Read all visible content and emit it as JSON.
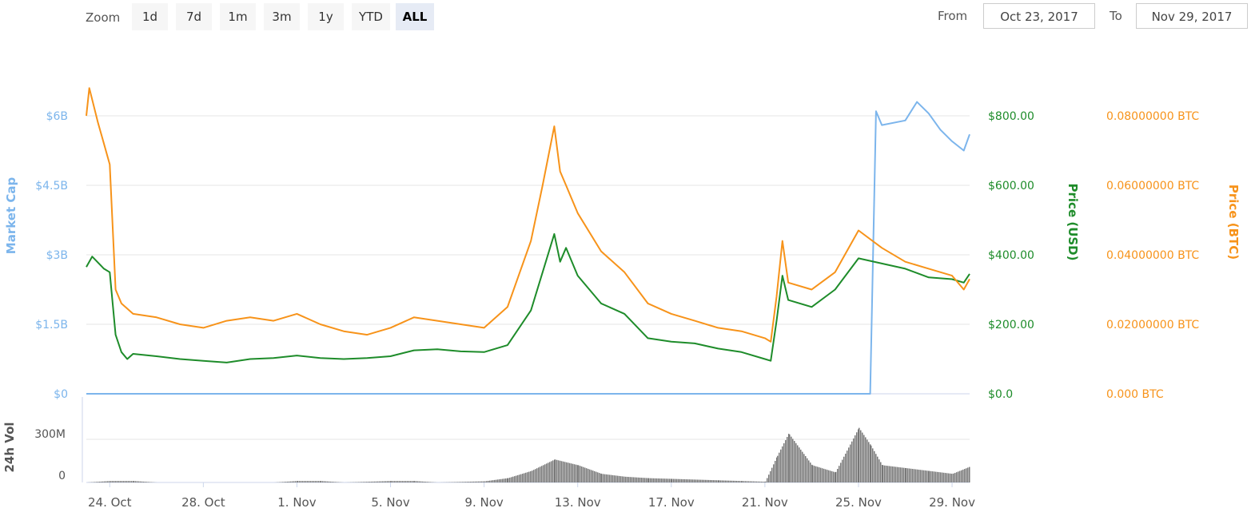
{
  "toolbar": {
    "zoom_label": "Zoom",
    "zoom_buttons": [
      "1d",
      "7d",
      "1m",
      "3m",
      "1y",
      "YTD",
      "ALL"
    ],
    "active_zoom": "ALL",
    "from_label": "From",
    "from_value": "Oct 23, 2017",
    "to_label": "To",
    "to_value": "Nov 29, 2017"
  },
  "colors": {
    "market_cap": "#7cb5ec",
    "price_usd": "#1e8c2a",
    "price_btc": "#f7931a",
    "volume": "#777777",
    "grid": "#e6e6e6"
  },
  "chart_data": {
    "type": "line",
    "x_axis": {
      "tick_labels": [
        "24. Oct",
        "28. Oct",
        "1. Nov",
        "5. Nov",
        "9. Nov",
        "13. Nov",
        "17. Nov",
        "21. Nov",
        "25. Nov",
        "29. Nov"
      ],
      "range": [
        "2017-10-23",
        "2017-11-29"
      ]
    },
    "axes": {
      "market_cap": {
        "label": "Market Cap",
        "ticks": [
          "$0",
          "$1.5B",
          "$3B",
          "$4.5B",
          "$6B"
        ],
        "range": [
          0,
          6000000000
        ]
      },
      "price_usd": {
        "label": "Price (USD)",
        "ticks": [
          "$0.0",
          "$200.00",
          "$400.00",
          "$600.00",
          "$800.00"
        ],
        "range": [
          0,
          800
        ]
      },
      "price_btc": {
        "label": "Price (BTC)",
        "ticks": [
          "0.000 BTC",
          "0.02000000 BTC",
          "0.04000000 BTC",
          "0.06000000 BTC",
          "0.08000000 BTC"
        ],
        "range": [
          0,
          0.08
        ]
      },
      "volume": {
        "label": "24h Vol",
        "ticks": [
          "0",
          "300M"
        ],
        "range": [
          0,
          300000000
        ]
      }
    },
    "series": [
      {
        "axis": "price_usd",
        "points": [
          [
            "2017-10-23",
            365
          ],
          [
            "2017-10-23T06:00",
            395
          ],
          [
            "2017-10-23T18:00",
            360
          ],
          [
            "2017-10-24",
            350
          ],
          [
            "2017-10-24T06:00",
            170
          ],
          [
            "2017-10-24T12:00",
            120
          ],
          [
            "2017-10-24T18:00",
            100
          ],
          [
            "2017-10-25",
            115
          ],
          [
            "2017-10-26",
            108
          ],
          [
            "2017-10-27",
            100
          ],
          [
            "2017-10-28",
            95
          ],
          [
            "2017-10-29",
            90
          ],
          [
            "2017-10-30",
            100
          ],
          [
            "2017-10-31",
            103
          ],
          [
            "2017-11-01",
            110
          ],
          [
            "2017-11-02",
            103
          ],
          [
            "2017-11-03",
            100
          ],
          [
            "2017-11-04",
            103
          ],
          [
            "2017-11-05",
            108
          ],
          [
            "2017-11-06",
            125
          ],
          [
            "2017-11-07",
            128
          ],
          [
            "2017-11-08",
            122
          ],
          [
            "2017-11-09",
            120
          ],
          [
            "2017-11-10",
            140
          ],
          [
            "2017-11-11",
            240
          ],
          [
            "2017-11-11T12:00",
            350
          ],
          [
            "2017-11-12",
            460
          ],
          [
            "2017-11-12T06:00",
            380
          ],
          [
            "2017-11-12T12:00",
            420
          ],
          [
            "2017-11-13",
            340
          ],
          [
            "2017-11-14",
            260
          ],
          [
            "2017-11-15",
            230
          ],
          [
            "2017-11-16",
            160
          ],
          [
            "2017-11-17",
            150
          ],
          [
            "2017-11-18",
            145
          ],
          [
            "2017-11-19",
            130
          ],
          [
            "2017-11-20",
            120
          ],
          [
            "2017-11-21",
            100
          ],
          [
            "2017-11-21T06:00",
            95
          ],
          [
            "2017-11-21T12:00",
            210
          ],
          [
            "2017-11-21T18:00",
            340
          ],
          [
            "2017-11-22",
            270
          ],
          [
            "2017-11-23",
            250
          ],
          [
            "2017-11-24",
            300
          ],
          [
            "2017-11-25",
            390
          ],
          [
            "2017-11-26",
            375
          ],
          [
            "2017-11-27",
            360
          ],
          [
            "2017-11-28",
            335
          ],
          [
            "2017-11-29",
            330
          ],
          [
            "2017-11-29T12:00",
            320
          ],
          [
            "2017-11-29T18:00",
            345
          ]
        ]
      },
      {
        "axis": "price_btc",
        "points": [
          [
            "2017-10-23",
            0.08
          ],
          [
            "2017-10-23T03:00",
            0.088
          ],
          [
            "2017-10-23T12:00",
            0.078
          ],
          [
            "2017-10-23T18:00",
            0.072
          ],
          [
            "2017-10-24",
            0.066
          ],
          [
            "2017-10-24T06:00",
            0.03
          ],
          [
            "2017-10-24T12:00",
            0.026
          ],
          [
            "2017-10-25",
            0.023
          ],
          [
            "2017-10-26",
            0.022
          ],
          [
            "2017-10-27",
            0.02
          ],
          [
            "2017-10-28",
            0.019
          ],
          [
            "2017-10-29",
            0.021
          ],
          [
            "2017-10-30",
            0.022
          ],
          [
            "2017-10-31",
            0.021
          ],
          [
            "2017-11-01",
            0.023
          ],
          [
            "2017-11-02",
            0.02
          ],
          [
            "2017-11-03",
            0.018
          ],
          [
            "2017-11-04",
            0.017
          ],
          [
            "2017-11-05",
            0.019
          ],
          [
            "2017-11-06",
            0.022
          ],
          [
            "2017-11-07",
            0.021
          ],
          [
            "2017-11-08",
            0.02
          ],
          [
            "2017-11-09",
            0.019
          ],
          [
            "2017-11-10",
            0.025
          ],
          [
            "2017-11-11",
            0.044
          ],
          [
            "2017-11-11T12:00",
            0.06
          ],
          [
            "2017-11-12",
            0.077
          ],
          [
            "2017-11-12T06:00",
            0.064
          ],
          [
            "2017-11-12T12:00",
            0.06
          ],
          [
            "2017-11-13",
            0.052
          ],
          [
            "2017-11-14",
            0.041
          ],
          [
            "2017-11-15",
            0.035
          ],
          [
            "2017-11-16",
            0.026
          ],
          [
            "2017-11-17",
            0.023
          ],
          [
            "2017-11-18",
            0.021
          ],
          [
            "2017-11-19",
            0.019
          ],
          [
            "2017-11-20",
            0.018
          ],
          [
            "2017-11-21",
            0.016
          ],
          [
            "2017-11-21T06:00",
            0.015
          ],
          [
            "2017-11-21T12:00",
            0.028
          ],
          [
            "2017-11-21T18:00",
            0.044
          ],
          [
            "2017-11-22",
            0.032
          ],
          [
            "2017-11-23",
            0.03
          ],
          [
            "2017-11-24",
            0.035
          ],
          [
            "2017-11-25",
            0.047
          ],
          [
            "2017-11-26",
            0.042
          ],
          [
            "2017-11-27",
            0.038
          ],
          [
            "2017-11-28",
            0.036
          ],
          [
            "2017-11-29",
            0.034
          ],
          [
            "2017-11-29T12:00",
            0.03
          ],
          [
            "2017-11-29T18:00",
            0.033
          ]
        ]
      },
      {
        "axis": "market_cap",
        "points": [
          [
            "2017-10-23",
            0
          ],
          [
            "2017-11-25T12:00",
            0
          ],
          [
            "2017-11-25T18:00",
            6100000000
          ],
          [
            "2017-11-26",
            5800000000
          ],
          [
            "2017-11-27",
            5900000000
          ],
          [
            "2017-11-27T12:00",
            6300000000
          ],
          [
            "2017-11-28",
            6050000000
          ],
          [
            "2017-11-28T12:00",
            5700000000
          ],
          [
            "2017-11-29",
            5450000000
          ],
          [
            "2017-11-29T12:00",
            5250000000
          ],
          [
            "2017-11-29T18:00",
            5600000000
          ]
        ]
      },
      {
        "axis": "volume",
        "type": "bar",
        "points": [
          [
            "2017-10-23",
            0
          ],
          [
            "2017-10-24",
            10000000
          ],
          [
            "2017-10-25",
            10000000
          ],
          [
            "2017-10-26",
            0
          ],
          [
            "2017-10-31",
            0
          ],
          [
            "2017-11-01",
            10000000
          ],
          [
            "2017-11-02",
            10000000
          ],
          [
            "2017-11-03",
            0
          ],
          [
            "2017-11-05",
            10000000
          ],
          [
            "2017-11-06",
            10000000
          ],
          [
            "2017-11-07",
            0
          ],
          [
            "2017-11-09",
            8000000
          ],
          [
            "2017-11-10",
            30000000
          ],
          [
            "2017-11-11",
            80000000
          ],
          [
            "2017-11-12",
            160000000
          ],
          [
            "2017-11-13",
            120000000
          ],
          [
            "2017-11-14",
            60000000
          ],
          [
            "2017-11-15",
            40000000
          ],
          [
            "2017-11-16",
            30000000
          ],
          [
            "2017-11-17",
            25000000
          ],
          [
            "2017-11-18",
            20000000
          ],
          [
            "2017-11-19",
            15000000
          ],
          [
            "2017-11-20",
            10000000
          ],
          [
            "2017-11-21",
            5000000
          ],
          [
            "2017-11-21T12:00",
            180000000
          ],
          [
            "2017-11-22",
            340000000
          ],
          [
            "2017-11-23",
            120000000
          ],
          [
            "2017-11-24",
            70000000
          ],
          [
            "2017-11-25",
            380000000
          ],
          [
            "2017-11-25T12:00",
            260000000
          ],
          [
            "2017-11-26",
            120000000
          ],
          [
            "2017-11-27",
            100000000
          ],
          [
            "2017-11-28",
            80000000
          ],
          [
            "2017-11-29",
            60000000
          ],
          [
            "2017-11-29T18:00",
            110000000
          ]
        ]
      }
    ],
    "grid": true,
    "legend": "none"
  }
}
